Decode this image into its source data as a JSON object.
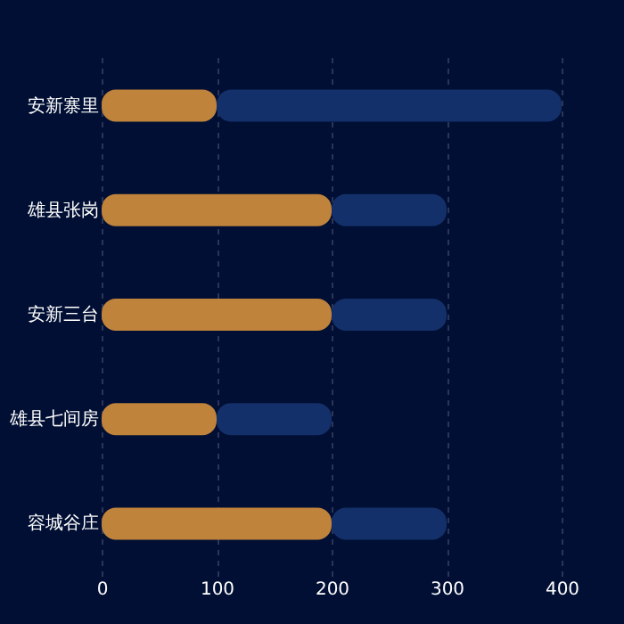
{
  "chart_data": {
    "type": "bar",
    "orientation": "horizontal",
    "stacked": true,
    "categories": [
      "安新寨里",
      "雄县张岗",
      "安新三台",
      "雄县七间房",
      "容城谷庄"
    ],
    "series": [
      {
        "color": "#bf833b",
        "values": [
          100,
          200,
          200,
          100,
          200
        ]
      },
      {
        "color": "#14306a",
        "values": [
          300,
          100,
          100,
          100,
          100
        ]
      }
    ],
    "xlim": [
      0,
      400
    ],
    "xticks": [
      0,
      100,
      200,
      300,
      400
    ],
    "grid": "x"
  }
}
